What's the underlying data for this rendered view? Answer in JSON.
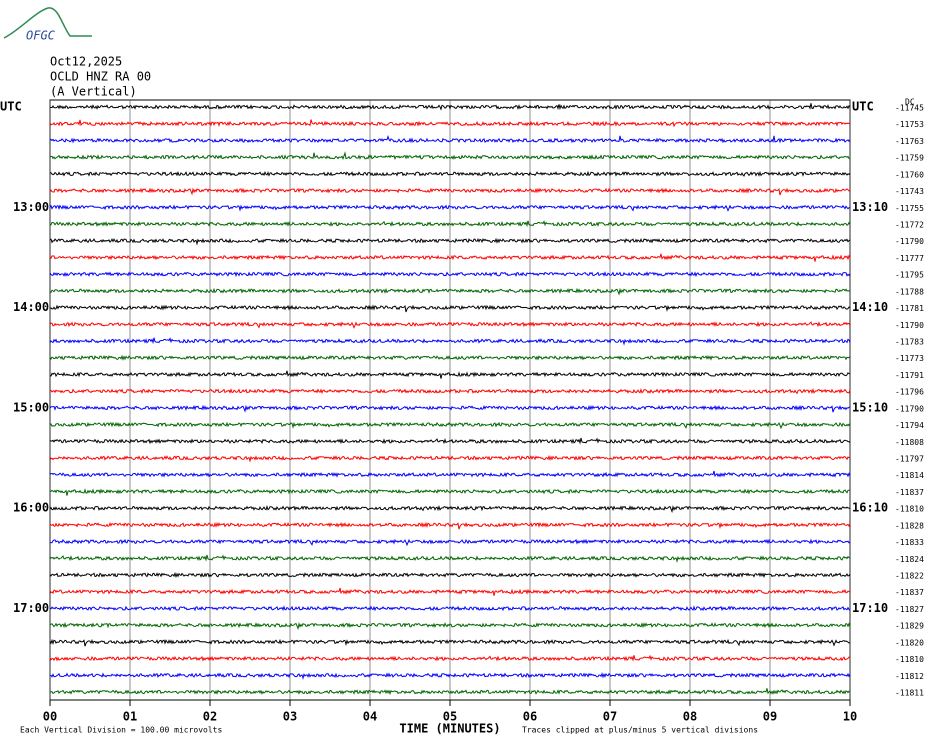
{
  "logo": "OFGC",
  "header": {
    "date": "Oct12,2025",
    "station": "OCLD HNZ RA 00",
    "component": "(A Vertical)"
  },
  "offset_heading": "DC",
  "trace_colors": [
    "#000000",
    "#ff0000",
    "#0000ff",
    "#006400"
  ],
  "rows": [
    {
      "offset": -11745,
      "left": "UTC",
      "right": "UTC"
    },
    {
      "offset": -11753
    },
    {
      "offset": -11763
    },
    {
      "offset": -11759
    },
    {
      "offset": -11760
    },
    {
      "offset": -11743
    },
    {
      "offset": -11755,
      "left": "13:00",
      "right": "13:10"
    },
    {
      "offset": -11772
    },
    {
      "offset": -11790
    },
    {
      "offset": -11777
    },
    {
      "offset": -11795
    },
    {
      "offset": -11788
    },
    {
      "offset": -11781,
      "left": "14:00",
      "right": "14:10"
    },
    {
      "offset": -11790
    },
    {
      "offset": -11783
    },
    {
      "offset": -11773
    },
    {
      "offset": -11791
    },
    {
      "offset": -11796
    },
    {
      "offset": -11790,
      "left": "15:00",
      "right": "15:10"
    },
    {
      "offset": -11794
    },
    {
      "offset": -11808
    },
    {
      "offset": -11797
    },
    {
      "offset": -11814
    },
    {
      "offset": -11837
    },
    {
      "offset": -11810,
      "left": "16:00",
      "right": "16:10"
    },
    {
      "offset": -11828
    },
    {
      "offset": -11833
    },
    {
      "offset": -11824
    },
    {
      "offset": -11822
    },
    {
      "offset": -11837
    },
    {
      "offset": -11827,
      "left": "17:00",
      "right": "17:10"
    },
    {
      "offset": -11829
    },
    {
      "offset": -11820
    },
    {
      "offset": -11810
    },
    {
      "offset": -11812
    },
    {
      "offset": -11811
    }
  ],
  "x_ticks": [
    "00",
    "01",
    "02",
    "03",
    "04",
    "05",
    "06",
    "07",
    "08",
    "09",
    "10"
  ],
  "x_label": "TIME (MINUTES)",
  "scale_note": "Each Vertical Division =  100.00 microvolts",
  "clip_note": "Traces clipped at plus/minus 5 vertical divisions"
}
